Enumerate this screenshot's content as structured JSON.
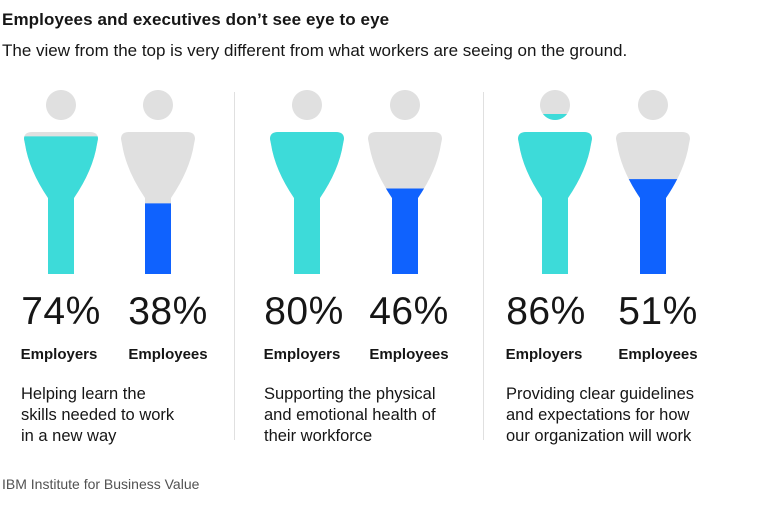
{
  "title": "Employees and executives don’t see eye to eye",
  "subtitle": "The view from the top is very different from what workers are seeing on the ground.",
  "source": "IBM Institute for Business Value",
  "colors": {
    "employers": "#3ddbd9",
    "employees": "#0f62fe",
    "empty": "#e0e0e0"
  },
  "chart_data": {
    "type": "bar",
    "unit": "%",
    "categories": [
      "Helping learn the skills needed to work in a new way",
      "Supporting the physical and emotional health of their workforce",
      "Providing clear guidelines and expectations for how our organization will work"
    ],
    "series": [
      {
        "name": "Employers",
        "values": [
          74,
          80,
          86
        ]
      },
      {
        "name": "Employees",
        "values": [
          38,
          46,
          51
        ]
      }
    ],
    "ylim": [
      0,
      100
    ]
  },
  "groups": [
    {
      "desc_lines": [
        "Helping learn the",
        "skills needed to work",
        "in a new way"
      ],
      "items": [
        {
          "value": 74,
          "label": "74%",
          "who": "Employers"
        },
        {
          "value": 38,
          "label": "38%",
          "who": "Employees"
        }
      ]
    },
    {
      "desc_lines": [
        "Supporting the physical",
        "and emotional health of",
        "their workforce"
      ],
      "items": [
        {
          "value": 80,
          "label": "80%",
          "who": "Employers"
        },
        {
          "value": 46,
          "label": "46%",
          "who": "Employees"
        }
      ]
    },
    {
      "desc_lines": [
        "Providing clear guidelines",
        "and expectations for how",
        "our organization will work"
      ],
      "items": [
        {
          "value": 86,
          "label": "86%",
          "who": "Employers"
        },
        {
          "value": 51,
          "label": "51%",
          "who": "Employees"
        }
      ]
    }
  ]
}
